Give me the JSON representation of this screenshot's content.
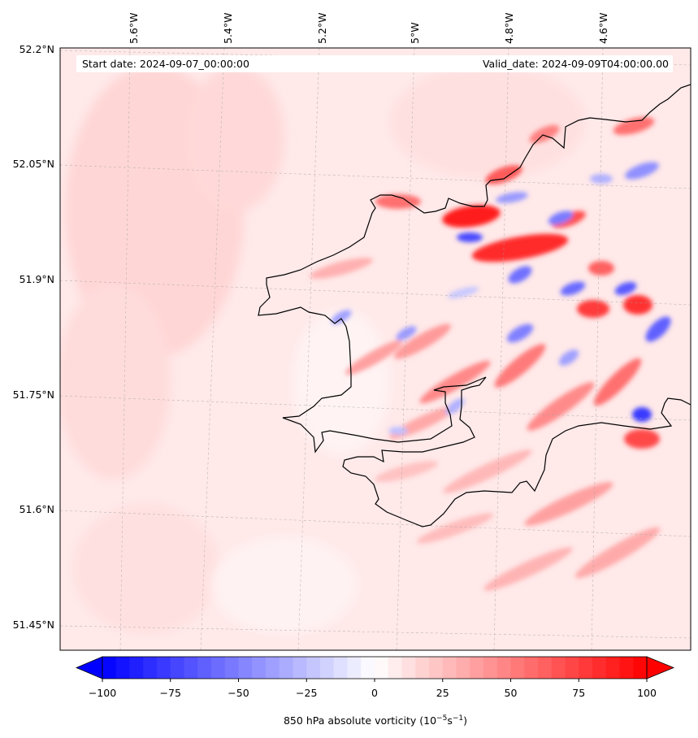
{
  "header": {
    "start_date": "Start date: 2024-09-07_00:00:00",
    "valid_date": "Valid_date: 2024-09-09T04:00:00.00"
  },
  "map": {
    "lon_labels": [
      "5.6°W",
      "5.4°W",
      "5.2°W",
      "5°W",
      "4.8°W",
      "4.6°W"
    ],
    "lat_labels": [
      "52.2°N",
      "52.05°N",
      "51.9°N",
      "51.75°N",
      "51.6°N",
      "51.45°N"
    ],
    "background_color": "#ffe6e6",
    "coast_color": "#000000"
  },
  "colorbar": {
    "ticks": [
      "−100",
      "−75",
      "−50",
      "−25",
      "0",
      "25",
      "50",
      "75",
      "100"
    ],
    "min": -100,
    "max": 100,
    "label_prefix": "850 hPa absolute vorticity (10",
    "label_exp1": "−5",
    "label_mid": "s",
    "label_exp2": "−1",
    "label_suffix": ")",
    "low_color": "#0000ff",
    "high_color": "#ff0000"
  }
}
